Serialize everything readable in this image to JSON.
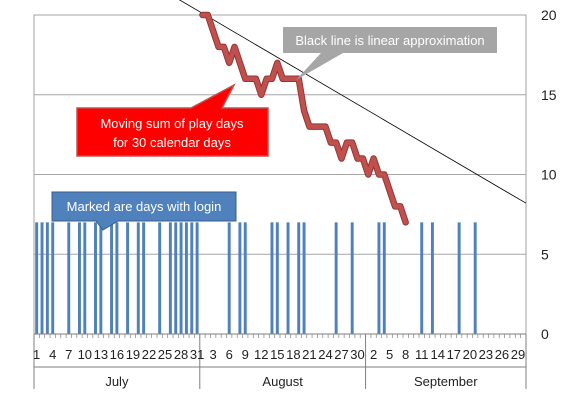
{
  "chart_data": {
    "type": "bar",
    "y_axis": {
      "position": "right",
      "min": 0,
      "max": 20,
      "ticks": [
        0,
        5,
        10,
        15,
        20
      ],
      "grid": true
    },
    "days": [
      1,
      2,
      3,
      4,
      5,
      6,
      7,
      8,
      9,
      10,
      11,
      12,
      13,
      14,
      15,
      16,
      17,
      18,
      19,
      20,
      21,
      22,
      23,
      24,
      25,
      26,
      27,
      28,
      29,
      30,
      31,
      1,
      2,
      3,
      4,
      5,
      6,
      7,
      8,
      9,
      10,
      11,
      12,
      13,
      14,
      15,
      16,
      17,
      18,
      19,
      20,
      21,
      22,
      23,
      24,
      25,
      26,
      27,
      28,
      29,
      30,
      31,
      1,
      2,
      3,
      4,
      5,
      6,
      7,
      8,
      9,
      10,
      11,
      12,
      13,
      14,
      15,
      16,
      17,
      18,
      19,
      20,
      21,
      22,
      23,
      24,
      25,
      26,
      27,
      28,
      29,
      30
    ],
    "tick_labels": [
      "1",
      "4",
      "7",
      "10",
      "13",
      "16",
      "19",
      "22",
      "25",
      "28",
      "31",
      "3",
      "6",
      "9",
      "12",
      "15",
      "18",
      "21",
      "24",
      "27",
      "30",
      "2",
      "5",
      "8",
      "11",
      "14",
      "17",
      "20",
      "23",
      "26",
      "29"
    ],
    "months": [
      {
        "name": "July",
        "days": 31
      },
      {
        "name": "August",
        "days": 31
      },
      {
        "name": "September",
        "days": 30
      }
    ],
    "series": [
      {
        "type": "bar",
        "marker_value": 7,
        "color": "#4f81bd",
        "login": [
          1,
          1,
          1,
          1,
          0,
          0,
          1,
          0,
          1,
          1,
          0,
          1,
          1,
          0,
          1,
          1,
          0,
          1,
          0,
          1,
          1,
          0,
          0,
          1,
          0,
          1,
          1,
          1,
          1,
          1,
          1,
          0,
          0,
          0,
          0,
          0,
          1,
          0,
          1,
          1,
          0,
          0,
          0,
          0,
          1,
          1,
          0,
          1,
          0,
          1,
          1,
          0,
          0,
          0,
          0,
          0,
          1,
          0,
          0,
          1,
          0,
          0,
          0,
          0,
          1,
          1,
          0,
          0,
          0,
          0,
          0,
          0,
          1,
          0,
          1,
          0,
          0,
          0,
          0,
          1,
          0,
          0,
          1,
          0,
          0,
          0,
          0,
          0,
          0,
          0,
          0,
          0
        ]
      },
      {
        "type": "line",
        "color": "#c0504d",
        "start_index": 31,
        "values": [
          20,
          20,
          19,
          18,
          18,
          17,
          18,
          17,
          16,
          16,
          16,
          15,
          16,
          16,
          17,
          16,
          16,
          16,
          16,
          14,
          13,
          13,
          13,
          13,
          12,
          12,
          11,
          12,
          12,
          11,
          11,
          10,
          11,
          10,
          10,
          9,
          8,
          8,
          7
        ]
      },
      {
        "type": "trend",
        "color": "#000000",
        "y_start": 26.3,
        "y_end": 8.2
      }
    ]
  },
  "annotations": {
    "linear": "Black line is linear approximation",
    "moving_sum_line1": "Moving sum of play days",
    "moving_sum_line2": "for 30 calendar days",
    "marked": "Marked are days with login"
  },
  "colors": {
    "login_bar": "#4f81bd",
    "moving_sum": "#c0504d",
    "callout_gray": "#a6a6a6",
    "callout_red": "#ff0000",
    "callout_blue": "#4f81bd"
  }
}
